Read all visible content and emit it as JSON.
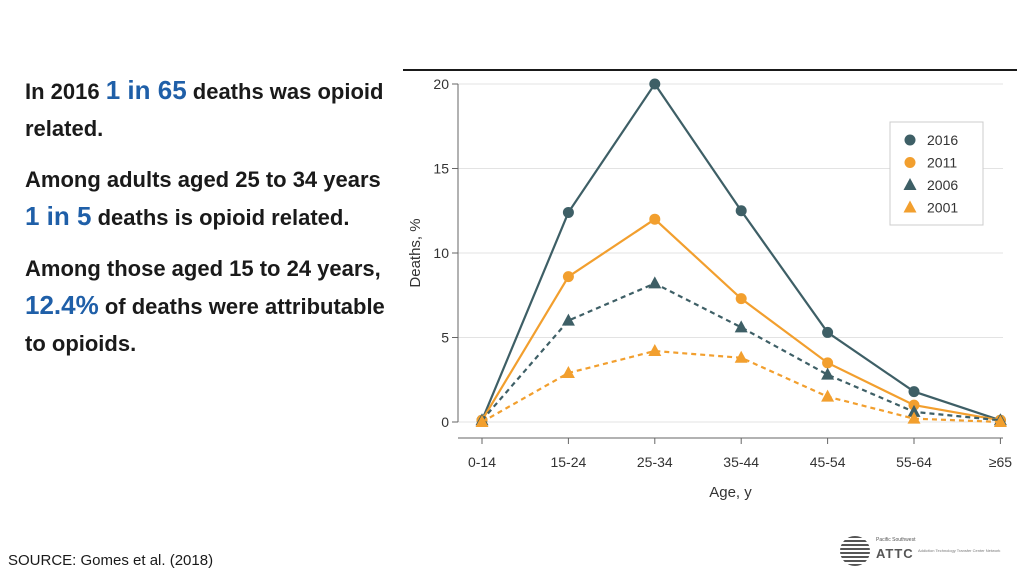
{
  "text": {
    "p1_pre": "In 2016 ",
    "p1_hl": "1 in 65",
    "p1_post": " deaths was opioid related.",
    "p2_pre": "Among adults aged 25 to 34 years ",
    "p2_hl": "1 in 5",
    "p2_post": " deaths is opioid related.",
    "p3_pre": "Among those aged 15 to 24 years, ",
    "p3_hl": "12.4%",
    "p3_post": " of deaths were attributable to opioids."
  },
  "source": "SOURCE: Gomes et al. (2018)",
  "logo": {
    "top_line": "Pacific Southwest",
    "name": "ATTC",
    "tagline": "Addiction Technology Transfer Center Network"
  },
  "colors": {
    "teal": "#3e5f66",
    "orange": "#f29f2e",
    "highlight": "#1f5fa8"
  },
  "chart_data": {
    "type": "line",
    "title": "",
    "xlabel": "Age, y",
    "ylabel": "Deaths, %",
    "categories": [
      "0-14",
      "15-24",
      "25-34",
      "35-44",
      "45-54",
      "55-64",
      "≥65"
    ],
    "ylim": [
      0,
      20
    ],
    "yticks": [
      0,
      5,
      10,
      15,
      20
    ],
    "grid": true,
    "legend": "top-right",
    "series": [
      {
        "name": "2016",
        "values": [
          0.1,
          12.4,
          20.0,
          12.5,
          5.3,
          1.8,
          0.1
        ],
        "color": "#3e5f66",
        "marker": "circle",
        "dashed": false
      },
      {
        "name": "2011",
        "values": [
          0.1,
          8.6,
          12.0,
          7.3,
          3.5,
          1.0,
          0.1
        ],
        "color": "#f29f2e",
        "marker": "circle",
        "dashed": false
      },
      {
        "name": "2006",
        "values": [
          0.1,
          6.0,
          8.2,
          5.6,
          2.8,
          0.6,
          0.1
        ],
        "color": "#3e5f66",
        "marker": "triangle",
        "dashed": true
      },
      {
        "name": "2001",
        "values": [
          0.0,
          2.9,
          4.2,
          3.8,
          1.5,
          0.2,
          0.0
        ],
        "color": "#f29f2e",
        "marker": "triangle",
        "dashed": true
      }
    ]
  }
}
